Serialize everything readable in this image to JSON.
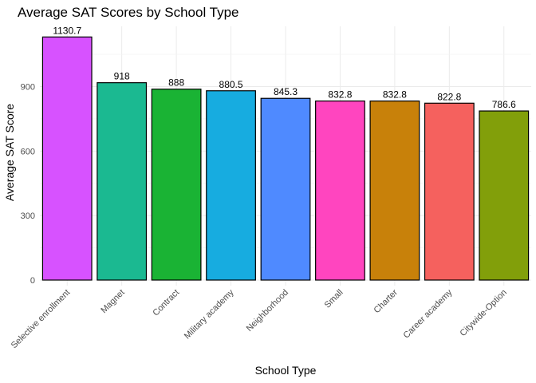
{
  "chart_data": {
    "type": "bar",
    "title": "Average SAT Scores by School Type",
    "xlabel": "School Type",
    "ylabel": "Average SAT Score",
    "categories": [
      "Selective enrollment",
      "Magnet",
      "Contract",
      "Military academy",
      "Neighborhood",
      "Small",
      "Charter",
      "Career academy",
      "Citywide-Option"
    ],
    "values": [
      1130.7,
      918,
      888,
      880.5,
      845.3,
      832.8,
      832.8,
      822.8,
      786.6
    ],
    "value_labels": [
      "1130.7",
      "918",
      "888",
      "880.5",
      "845.3",
      "832.8",
      "832.8",
      "822.8",
      "786.6"
    ],
    "colors": [
      "#D752FF",
      "#1BB991",
      "#1AB334",
      "#17ACE0",
      "#4F8AFF",
      "#FF45BF",
      "#C8810A",
      "#F5615E",
      "#829F0A"
    ],
    "yticks": [
      0,
      300,
      600,
      900
    ],
    "ylim": [
      0,
      1185
    ],
    "grid": true,
    "legend": "none"
  }
}
